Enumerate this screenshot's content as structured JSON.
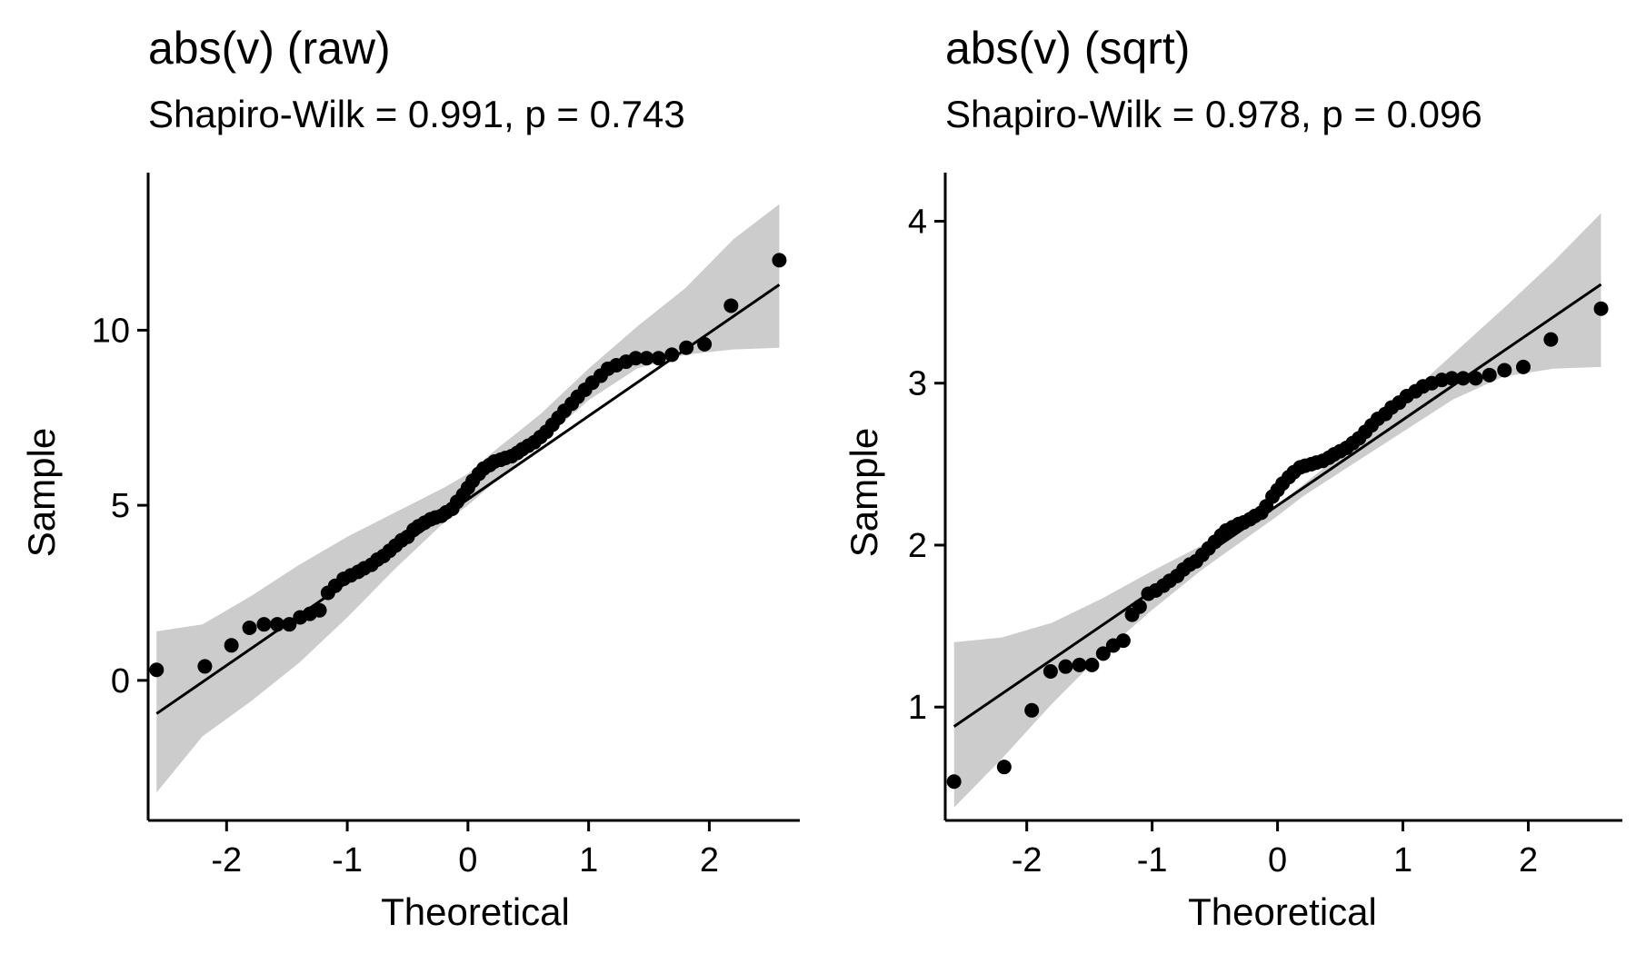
{
  "chart_data": [
    {
      "type": "scatter",
      "subtype": "qq-plot",
      "title": "abs(v) (raw)",
      "subtitle": "Shapiro-Wilk = 0.991, p = 0.743",
      "xlabel": "Theoretical",
      "ylabel": "Sample",
      "xlim": [
        -2.65,
        2.75
      ],
      "ylim": [
        -4.0,
        14.5
      ],
      "xticks": [
        -2,
        -1,
        0,
        1,
        2
      ],
      "xtick_labels": [
        "-2",
        "-1",
        "0",
        "1",
        "2"
      ],
      "yticks": [
        0,
        5,
        10
      ],
      "ytick_labels": [
        "0",
        "5",
        "10"
      ],
      "grid": false,
      "legend": "none",
      "colors": {
        "points": "#000000",
        "line": "#000000",
        "band": "#cccccc",
        "axis": "#000000"
      },
      "reference_line": {
        "x": [
          -2.58,
          2.58
        ],
        "y": [
          -0.95,
          11.3
        ]
      },
      "confidence_band": {
        "x": [
          -2.58,
          -2.2,
          -1.8,
          -1.4,
          -1.0,
          -0.6,
          -0.2,
          0.0,
          0.2,
          0.6,
          1.0,
          1.4,
          1.8,
          2.2,
          2.58
        ],
        "lower": [
          -3.2,
          -1.6,
          -0.6,
          0.5,
          1.8,
          3.2,
          4.5,
          5.0,
          5.6,
          6.8,
          8.0,
          8.9,
          9.3,
          9.45,
          9.5
        ],
        "upper": [
          1.4,
          1.6,
          2.4,
          3.3,
          4.1,
          4.8,
          5.5,
          5.9,
          6.5,
          7.6,
          8.9,
          10.1,
          11.2,
          12.6,
          13.6
        ]
      },
      "points": {
        "x": [
          -2.58,
          -2.18,
          -1.96,
          -1.81,
          -1.69,
          -1.58,
          -1.48,
          -1.39,
          -1.31,
          -1.23,
          -1.16,
          -1.1,
          -1.03,
          -0.97,
          -0.91,
          -0.86,
          -0.8,
          -0.75,
          -0.7,
          -0.65,
          -0.6,
          -0.55,
          -0.5,
          -0.45,
          -0.41,
          -0.36,
          -0.31,
          -0.27,
          -0.22,
          -0.18,
          -0.13,
          -0.09,
          -0.04,
          0.0,
          0.04,
          0.09,
          0.13,
          0.18,
          0.22,
          0.27,
          0.31,
          0.36,
          0.41,
          0.45,
          0.5,
          0.55,
          0.6,
          0.65,
          0.7,
          0.75,
          0.8,
          0.86,
          0.91,
          0.97,
          1.03,
          1.1,
          1.16,
          1.23,
          1.31,
          1.39,
          1.48,
          1.58,
          1.69,
          1.81,
          1.96,
          2.18,
          2.58
        ],
        "y": [
          0.3,
          0.4,
          1.0,
          1.5,
          1.6,
          1.6,
          1.6,
          1.8,
          1.9,
          2.0,
          2.5,
          2.7,
          2.9,
          3.0,
          3.1,
          3.2,
          3.3,
          3.45,
          3.55,
          3.7,
          3.85,
          4.0,
          4.1,
          4.3,
          4.4,
          4.5,
          4.6,
          4.65,
          4.7,
          4.8,
          4.9,
          5.1,
          5.3,
          5.5,
          5.7,
          5.9,
          6.05,
          6.15,
          6.25,
          6.3,
          6.35,
          6.4,
          6.5,
          6.6,
          6.7,
          6.8,
          6.95,
          7.1,
          7.3,
          7.5,
          7.7,
          7.9,
          8.1,
          8.3,
          8.5,
          8.7,
          8.9,
          9.0,
          9.1,
          9.2,
          9.2,
          9.2,
          9.3,
          9.5,
          9.6,
          10.7,
          12.0
        ]
      }
    },
    {
      "type": "scatter",
      "subtype": "qq-plot",
      "title": "abs(v) (sqrt)",
      "subtitle": "Shapiro-Wilk = 0.978, p = 0.096",
      "xlabel": "Theoretical",
      "ylabel": "Sample",
      "xlim": [
        -2.65,
        2.75
      ],
      "ylim": [
        0.3,
        4.3
      ],
      "xticks": [
        -2,
        -1,
        0,
        1,
        2
      ],
      "xtick_labels": [
        "-2",
        "-1",
        "0",
        "1",
        "2"
      ],
      "yticks": [
        1,
        2,
        3,
        4
      ],
      "ytick_labels": [
        "1",
        "2",
        "3",
        "4"
      ],
      "grid": false,
      "legend": "none",
      "colors": {
        "points": "#000000",
        "line": "#000000",
        "band": "#cccccc",
        "axis": "#000000"
      },
      "reference_line": {
        "x": [
          -2.58,
          2.58
        ],
        "y": [
          0.88,
          3.61
        ]
      },
      "confidence_band": {
        "x": [
          -2.58,
          -2.2,
          -1.8,
          -1.4,
          -1.0,
          -0.6,
          -0.2,
          0.0,
          0.2,
          0.6,
          1.0,
          1.4,
          1.8,
          2.2,
          2.58
        ],
        "lower": [
          0.38,
          0.68,
          1.02,
          1.33,
          1.6,
          1.85,
          2.07,
          2.18,
          2.3,
          2.5,
          2.7,
          2.9,
          3.04,
          3.09,
          3.1
        ],
        "upper": [
          1.4,
          1.43,
          1.52,
          1.67,
          1.84,
          2.0,
          2.17,
          2.25,
          2.37,
          2.62,
          2.9,
          3.18,
          3.46,
          3.75,
          4.05
        ]
      },
      "points": {
        "x": [
          -2.58,
          -2.18,
          -1.96,
          -1.81,
          -1.69,
          -1.58,
          -1.48,
          -1.39,
          -1.31,
          -1.23,
          -1.16,
          -1.1,
          -1.03,
          -0.97,
          -0.91,
          -0.86,
          -0.8,
          -0.75,
          -0.7,
          -0.65,
          -0.6,
          -0.55,
          -0.5,
          -0.45,
          -0.41,
          -0.36,
          -0.31,
          -0.27,
          -0.22,
          -0.18,
          -0.13,
          -0.09,
          -0.04,
          0.0,
          0.04,
          0.09,
          0.13,
          0.18,
          0.22,
          0.27,
          0.31,
          0.36,
          0.41,
          0.45,
          0.5,
          0.55,
          0.6,
          0.65,
          0.7,
          0.75,
          0.8,
          0.86,
          0.91,
          0.97,
          1.03,
          1.1,
          1.16,
          1.23,
          1.31,
          1.39,
          1.48,
          1.58,
          1.69,
          1.81,
          1.96,
          2.18,
          2.58
        ],
        "y": [
          0.54,
          0.63,
          0.98,
          1.22,
          1.25,
          1.26,
          1.26,
          1.33,
          1.38,
          1.41,
          1.57,
          1.62,
          1.7,
          1.72,
          1.75,
          1.78,
          1.81,
          1.85,
          1.88,
          1.9,
          1.94,
          1.98,
          2.02,
          2.06,
          2.09,
          2.11,
          2.13,
          2.14,
          2.16,
          2.18,
          2.2,
          2.24,
          2.3,
          2.34,
          2.38,
          2.42,
          2.45,
          2.48,
          2.49,
          2.5,
          2.51,
          2.52,
          2.54,
          2.56,
          2.58,
          2.6,
          2.63,
          2.66,
          2.7,
          2.74,
          2.78,
          2.81,
          2.85,
          2.88,
          2.92,
          2.95,
          2.98,
          3.0,
          3.02,
          3.03,
          3.03,
          3.03,
          3.05,
          3.08,
          3.1,
          3.27,
          3.46
        ]
      }
    }
  ]
}
